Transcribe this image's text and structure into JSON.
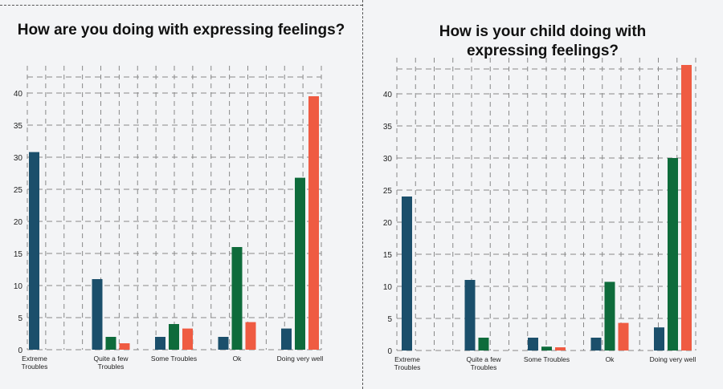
{
  "colors": {
    "series1": "#1b4f6b",
    "series2": "#0e6b3b",
    "series3": "#ef5b42",
    "grid": "#888888"
  },
  "chart_data": [
    {
      "type": "bar",
      "title": "How are you doing with expressing feelings?",
      "categories": [
        "Extreme Troubles",
        "Quite a few Troubles",
        "Some Troubles",
        "Ok",
        "Doing very well"
      ],
      "category_lines": [
        [
          "Extreme",
          "Troubles"
        ],
        [
          "Quite a few",
          "Troubles"
        ],
        [
          "Some Troubles"
        ],
        [
          "Ok"
        ],
        [
          "Doing very well"
        ]
      ],
      "series": [
        {
          "name": "series1",
          "values": [
            30.8,
            11,
            2,
            2,
            3.3
          ]
        },
        {
          "name": "series2",
          "values": [
            0,
            2,
            4,
            16,
            26.8
          ]
        },
        {
          "name": "series3",
          "values": [
            0,
            1,
            3.3,
            4.3,
            39.5
          ]
        }
      ],
      "yticks": [
        "0",
        "5",
        "10",
        "15",
        "20",
        "25",
        "30",
        "35",
        "40"
      ],
      "ylim": [
        0,
        41
      ],
      "grid": true
    },
    {
      "type": "bar",
      "title": "How is your child doing with expressing feelings?",
      "categories": [
        "Extreme Troubles",
        "Quite a few Troubles",
        "Some Troubles",
        "Ok",
        "Doing very well"
      ],
      "category_lines": [
        [
          "Extreme",
          "Troubles"
        ],
        [
          "Quite a few",
          "Troubles"
        ],
        [
          "Some Troubles"
        ],
        [
          "Ok"
        ],
        [
          "Doing very well"
        ]
      ],
      "series": [
        {
          "name": "series1",
          "values": [
            24,
            11,
            2,
            2,
            3.6
          ]
        },
        {
          "name": "series2",
          "values": [
            0,
            2,
            0.6,
            10.7,
            30
          ]
        },
        {
          "name": "series3",
          "values": [
            0,
            0,
            0.5,
            4.3,
            44.5
          ]
        }
      ],
      "yticks": [
        "0",
        "5",
        "10",
        "15",
        "20",
        "25",
        "30",
        "35",
        "40"
      ],
      "ylim": [
        0,
        44
      ],
      "grid": true
    }
  ],
  "titles": {
    "left": "How are you doing with expressing feelings?",
    "right_line1": "How is your child doing with",
    "right_line2": "expressing feelings?"
  }
}
